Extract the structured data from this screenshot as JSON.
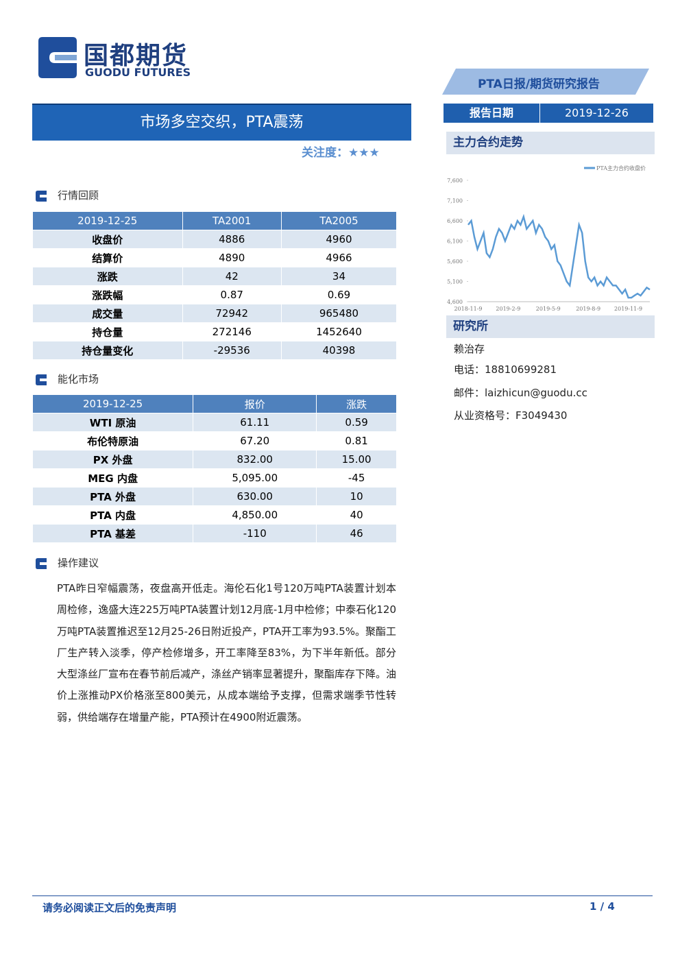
{
  "header": {
    "logo_cn": "国都期货",
    "logo_en": "GUODU FUTURES",
    "report_type": "PTA日报/期货研究报告",
    "date_label": "报告日期",
    "date": "2019-12-26"
  },
  "title": "市场多空交织，PTA震荡",
  "attention_label": "关注度：",
  "attention_stars": "★★★",
  "sections": [
    {
      "title": "行情回顾"
    },
    {
      "title": "能化市场"
    },
    {
      "title": "操作建议"
    }
  ],
  "table1": {
    "header": [
      "2019-12-25",
      "TA2001",
      "TA2005"
    ],
    "rows": [
      [
        "收盘价",
        "4886",
        "4960"
      ],
      [
        "结算价",
        "4890",
        "4966"
      ],
      [
        "涨跌",
        "42",
        "34"
      ],
      [
        "涨跌幅",
        "0.87",
        "0.69"
      ],
      [
        "成交量",
        "72942",
        "965480"
      ],
      [
        "持仓量",
        "272146",
        "1452640"
      ],
      [
        "持仓量变化",
        "-29536",
        "40398"
      ]
    ]
  },
  "table2": {
    "header": [
      "2019-12-25",
      "报价",
      "涨跌"
    ],
    "rows": [
      [
        "WTI 原油",
        "61.11",
        "0.59"
      ],
      [
        "布伦特原油",
        "67.20",
        "0.81"
      ],
      [
        "PX 外盘",
        "832.00",
        "15.00"
      ],
      [
        "MEG 内盘",
        "5,095.00",
        "-45"
      ],
      [
        "PTA 外盘",
        "630.00",
        "10"
      ],
      [
        "PTA 内盘",
        "4,850.00",
        "40"
      ],
      [
        "PTA 基差",
        "-110",
        "46"
      ]
    ]
  },
  "advice": "PTA昨日窄幅震荡，夜盘高开低走。海伦石化1号120万吨PTA装置计划本周检修，逸盛大连225万吨PTA装置计划12月底-1月中检修；中泰石化120万吨PTA装置推迟至12月25-26日附近投产，PTA开工率为93.5%。聚酯工厂生产转入淡季，停产检修增多，开工率降至83%，为下半年新低。部分大型涤丝厂宣布在春节前后减产，涤丝产销率显著提升，聚酯库存下降。油价上涨推动PX价格涨至800美元，从成本端给予支撑，但需求端季节性转弱，供给端存在增量产能，PTA预计在4900附近震荡。",
  "sidebar": {
    "chart_title": "主力合约走势",
    "research_title": "研究所",
    "name": "赖治存",
    "phone_label": "电话：",
    "phone": "18810699281",
    "email_label": "邮件：",
    "email": "laizhicun@guodu.cc",
    "license_label": "从业资格号：",
    "license": "F3049430"
  },
  "chart_data": {
    "type": "line",
    "categories": [
      "2018-11-9",
      null,
      null,
      null,
      null,
      null,
      null,
      null,
      null,
      null,
      null,
      null,
      null,
      "2019-2-9",
      null,
      null,
      null,
      null,
      null,
      null,
      null,
      null,
      null,
      null,
      null,
      null,
      "2019-5-9",
      null,
      null,
      null,
      null,
      null,
      null,
      null,
      null,
      null,
      null,
      null,
      null,
      "2019-8-9",
      null,
      null,
      null,
      null,
      null,
      null,
      null,
      null,
      null,
      null,
      null,
      null,
      "2019-11-9",
      null,
      null,
      null,
      null,
      null,
      null,
      null
    ],
    "series": [
      {
        "name": "PTA主力合约收盘价",
        "color": "#5b9bd5",
        "values": [
          6500,
          6600,
          6200,
          5900,
          6100,
          6300,
          5800,
          5700,
          5900,
          6200,
          6400,
          6300,
          6100,
          6300,
          6500,
          6400,
          6600,
          6500,
          6700,
          6400,
          6500,
          6600,
          6300,
          6500,
          6400,
          6200,
          6100,
          5900,
          6000,
          5600,
          5500,
          5300,
          5100,
          5000,
          5500,
          6000,
          6500,
          6300,
          5600,
          5200,
          5100,
          5200,
          5000,
          5100,
          5000,
          5200,
          5100,
          5000,
          5000,
          4900,
          4800,
          4900,
          4700,
          4700,
          4750,
          4800,
          4750,
          4850,
          4950,
          4900
        ]
      }
    ],
    "ylim": [
      4600,
      7600
    ],
    "yticks": [
      {
        "value": 4600,
        "label": "4,600"
      },
      {
        "value": 5100,
        "label": "5,100"
      },
      {
        "value": 5600,
        "label": "5,600"
      },
      {
        "value": 6100,
        "label": "6,100"
      },
      {
        "value": 6600,
        "label": "6,600"
      },
      {
        "value": 7100,
        "label": "7,100"
      },
      {
        "value": 7600,
        "label": "7,600"
      }
    ],
    "legend": "top-right"
  },
  "footer": {
    "disclaimer": "请务必阅读正文后的免责声明",
    "page": "1 / 4"
  }
}
